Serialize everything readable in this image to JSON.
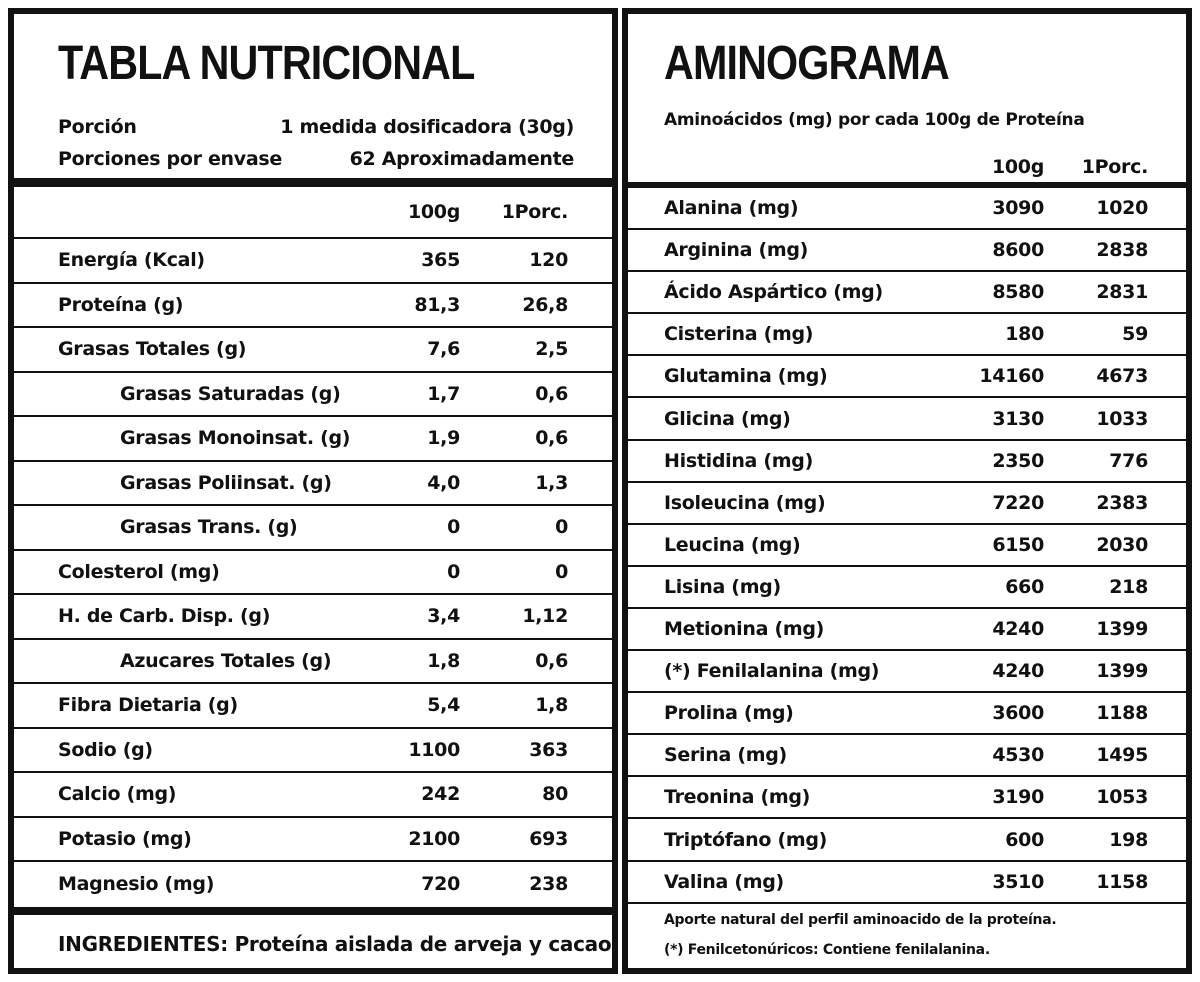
{
  "nutrition": {
    "title": "TABLA NUTRICIONAL",
    "portion_label": "Porción",
    "portion_value": "1 medida dosificadora (30g)",
    "servings_label": "Porciones por envase",
    "servings_value": "62 Aproximadamente",
    "col_100g": "100g",
    "col_portion": "1Porc.",
    "rows": [
      {
        "label": "Energía (Kcal)",
        "v100": "365",
        "vporc": "120",
        "sub": false
      },
      {
        "label": "Proteína (g)",
        "v100": "81,3",
        "vporc": "26,8",
        "sub": false
      },
      {
        "label": "Grasas Totales (g)",
        "v100": "7,6",
        "vporc": "2,5",
        "sub": false
      },
      {
        "label": "Grasas Saturadas (g)",
        "v100": "1,7",
        "vporc": "0,6",
        "sub": true
      },
      {
        "label": "Grasas Monoinsat. (g)",
        "v100": "1,9",
        "vporc": "0,6",
        "sub": true
      },
      {
        "label": "Grasas Poliinsat. (g)",
        "v100": "4,0",
        "vporc": "1,3",
        "sub": true
      },
      {
        "label": "Grasas Trans. (g)",
        "v100": "0",
        "vporc": "0",
        "sub": true
      },
      {
        "label": "Colesterol (mg)",
        "v100": "0",
        "vporc": "0",
        "sub": false
      },
      {
        "label": "H. de Carb. Disp. (g)",
        "v100": "3,4",
        "vporc": "1,12",
        "sub": false
      },
      {
        "label": "Azucares Totales (g)",
        "v100": "1,8",
        "vporc": "0,6",
        "sub": true
      },
      {
        "label": "Fibra Dietaria (g)",
        "v100": "5,4",
        "vporc": "1,8",
        "sub": false
      },
      {
        "label": "Sodio (g)",
        "v100": "1100",
        "vporc": "363",
        "sub": false
      },
      {
        "label": "Calcio (mg)",
        "v100": "242",
        "vporc": "80",
        "sub": false
      },
      {
        "label": "Potasio (mg)",
        "v100": "2100",
        "vporc": "693",
        "sub": false
      },
      {
        "label": "Magnesio (mg)",
        "v100": "720",
        "vporc": "238",
        "sub": false
      }
    ],
    "ingredients": "INGREDIENTES: Proteína aislada de arveja y cacao."
  },
  "amino": {
    "title": "AMINOGRAMA",
    "subtitle": "Aminoácidos (mg) por cada 100g de Proteína",
    "col_100g": "100g",
    "col_portion": "1Porc.",
    "rows": [
      {
        "label": "Alanina (mg)",
        "v100": "3090",
        "vporc": "1020"
      },
      {
        "label": "Arginina (mg)",
        "v100": "8600",
        "vporc": "2838"
      },
      {
        "label": "Ácido Aspártico (mg)",
        "v100": "8580",
        "vporc": "2831"
      },
      {
        "label": "Cisterina (mg)",
        "v100": "180",
        "vporc": "59"
      },
      {
        "label": "Glutamina (mg)",
        "v100": "14160",
        "vporc": "4673"
      },
      {
        "label": "Glicina (mg)",
        "v100": "3130",
        "vporc": "1033"
      },
      {
        "label": "Histidina (mg)",
        "v100": "2350",
        "vporc": "776"
      },
      {
        "label": "Isoleucina (mg)",
        "v100": "7220",
        "vporc": "2383"
      },
      {
        "label": "Leucina (mg)",
        "v100": "6150",
        "vporc": "2030"
      },
      {
        "label": "Lisina (mg)",
        "v100": "660",
        "vporc": "218"
      },
      {
        "label": "Metionina (mg)",
        "v100": "4240",
        "vporc": "1399"
      },
      {
        "label": "(*) Fenilalanina (mg)",
        "v100": "4240",
        "vporc": "1399"
      },
      {
        "label": "Prolina (mg)",
        "v100": "3600",
        "vporc": "1188"
      },
      {
        "label": "Serina (mg)",
        "v100": "4530",
        "vporc": "1495"
      },
      {
        "label": "Treonina (mg)",
        "v100": "3190",
        "vporc": "1053"
      },
      {
        "label": "Triptófano (mg)",
        "v100": "600",
        "vporc": "198"
      },
      {
        "label": "Valina (mg)",
        "v100": "3510",
        "vporc": "1158"
      }
    ],
    "footnote1": "Aporte natural del perfil aminoacido de la proteína.",
    "footnote2": "(*) Fenilcetonúricos: Contiene fenilalanina."
  }
}
